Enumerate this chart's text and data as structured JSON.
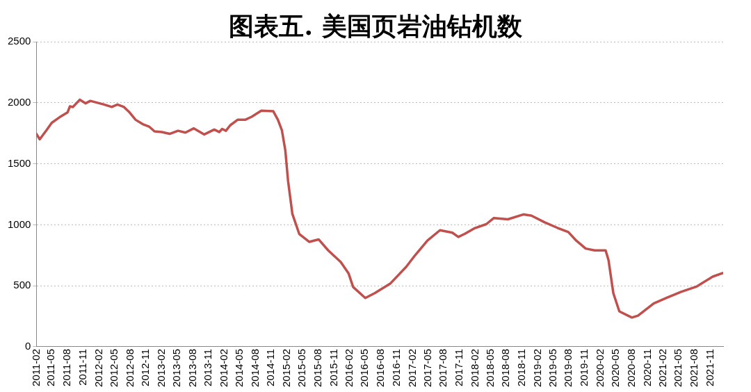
{
  "chart_data": {
    "type": "line",
    "title": "图表五. 美国页岩油钻机数",
    "x": [
      "2011-02-01",
      "2011-02-20",
      "2011-04-01",
      "2011-05-01",
      "2011-06-15",
      "2011-08-01",
      "2011-08-15",
      "2011-09-01",
      "2011-10-12",
      "2011-11-15",
      "2011-12-12",
      "2012-03-01",
      "2012-04-15",
      "2012-05-18",
      "2012-06-25",
      "2012-07-28",
      "2012-09-01",
      "2012-10-12",
      "2012-11-18",
      "2012-12-20",
      "2013-02-01",
      "2013-03-18",
      "2013-05-06",
      "2013-06-18",
      "2013-08-06",
      "2013-10-06",
      "2013-12-03",
      "2014-01-01",
      "2014-01-18",
      "2014-02-09",
      "2014-03-06",
      "2014-04-18",
      "2014-06-01",
      "2014-07-09",
      "2014-09-03",
      "2014-11-12",
      "2014-12-09",
      "2015-01-01",
      "2015-01-21",
      "2015-02-06",
      "2015-03-03",
      "2015-04-12",
      "2015-06-09",
      "2015-08-03",
      "2015-09-28",
      "2015-12-10",
      "2016-01-25",
      "2016-02-20",
      "2016-05-01",
      "2016-06-25",
      "2016-09-25",
      "2016-12-25",
      "2017-02-15",
      "2017-04-28",
      "2017-07-10",
      "2017-09-20",
      "2017-10-25",
      "2017-12-01",
      "2018-01-25",
      "2018-04-06",
      "2018-05-20",
      "2018-08-10",
      "2018-11-10",
      "2018-12-25",
      "2019-03-12",
      "2019-05-25",
      "2019-07-28",
      "2019-09-12",
      "2019-11-06",
      "2019-12-28",
      "2020-03-01",
      "2020-03-18",
      "2020-04-15",
      "2020-05-20",
      "2020-08-01",
      "2020-09-06",
      "2020-12-06",
      "2021-02-18",
      "2021-05-15",
      "2021-08-15",
      "2021-11-15",
      "2022-01-15"
    ],
    "series": [
      {
        "color": "#c0504d",
        "values": [
          1745,
          1700,
          1775,
          1835,
          1880,
          1920,
          1970,
          1965,
          2025,
          1995,
          2015,
          1985,
          1965,
          1985,
          1965,
          1920,
          1860,
          1825,
          1805,
          1765,
          1760,
          1745,
          1770,
          1755,
          1790,
          1740,
          1780,
          1760,
          1785,
          1770,
          1815,
          1860,
          1860,
          1885,
          1935,
          1930,
          1860,
          1775,
          1610,
          1360,
          1090,
          925,
          860,
          880,
          790,
          695,
          600,
          490,
          400,
          440,
          520,
          655,
          750,
          870,
          955,
          935,
          900,
          925,
          970,
          1005,
          1055,
          1045,
          1085,
          1075,
          1020,
          975,
          940,
          870,
          805,
          790,
          790,
          710,
          440,
          290,
          240,
          255,
          355,
          400,
          450,
          495,
          575,
          605
        ]
      }
    ],
    "xlim": [
      "2011-02-01",
      "2022-01-15"
    ],
    "xticks": [
      "2011-02",
      "2011-05",
      "2011-08",
      "2011-11",
      "2012-02",
      "2012-05",
      "2012-08",
      "2012-11",
      "2013-02",
      "2013-05",
      "2013-08",
      "2013-11",
      "2014-02",
      "2014-05",
      "2014-08",
      "2014-11",
      "2015-02",
      "2015-05",
      "2015-08",
      "2015-11",
      "2016-02",
      "2016-05",
      "2016-08",
      "2016-11",
      "2017-02",
      "2017-05",
      "2017-08",
      "2017-11",
      "2018-02",
      "2018-05",
      "2018-08",
      "2018-11",
      "2019-02",
      "2019-05",
      "2019-08",
      "2019-11",
      "2020-02",
      "2020-05",
      "2020-08",
      "2020-11",
      "2021-02",
      "2021-05",
      "2021-08",
      "2021-11"
    ],
    "ylim": [
      0,
      2500
    ],
    "yticks": [
      0,
      500,
      1000,
      1500,
      2000,
      2500
    ],
    "grid": "y",
    "legend": false,
    "marker": "none",
    "line_style": "solid"
  }
}
